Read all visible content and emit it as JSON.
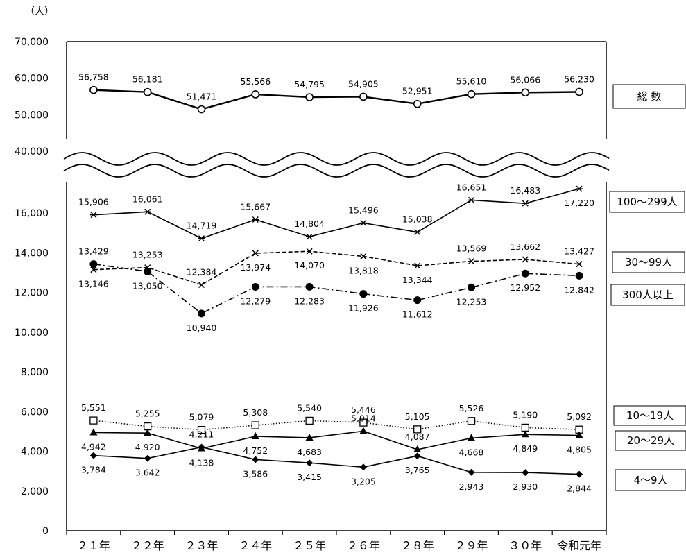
{
  "chart_data": {
    "type": "line",
    "unit_label": "（人）",
    "categories": [
      "２１年",
      "２２年",
      "２３年",
      "２４年",
      "２５年",
      "２６年",
      "２８年",
      "２９年",
      "３０年",
      "令和元年"
    ],
    "upper_axis": {
      "ticks": [
        "40,000",
        "50,000",
        "60,000",
        "70,000"
      ],
      "ylim": [
        40000,
        70000
      ]
    },
    "lower_axis": {
      "ticks": [
        "0",
        "2,000",
        "4,000",
        "6,000",
        "8,000",
        "10,000",
        "12,000",
        "14,000",
        "16,000"
      ],
      "ylim": [
        0,
        17500
      ]
    },
    "axis_break": true,
    "grid": false,
    "series": [
      {
        "name": "総 数",
        "axis": "upper",
        "marker": "circle-open",
        "line": "solid-thick",
        "values": [
          56758,
          56181,
          51471,
          55566,
          54795,
          54905,
          52951,
          55610,
          56066,
          56230
        ],
        "labels": [
          "56,758",
          "56,181",
          "51,471",
          "55,566",
          "54,795",
          "54,905",
          "52,951",
          "55,610",
          "56,066",
          "56,230"
        ]
      },
      {
        "name": "100～299人",
        "axis": "lower",
        "marker": "asterisk",
        "line": "solid",
        "values": [
          15906,
          16061,
          14719,
          15667,
          14804,
          15496,
          15038,
          16651,
          16483,
          17220
        ],
        "labels": [
          "15,906",
          "16,061",
          "14,719",
          "15,667",
          "14,804",
          "15,496",
          "15,038",
          "16,651",
          "16,483",
          "17,220"
        ]
      },
      {
        "name": "30～99人",
        "axis": "lower",
        "marker": "x",
        "line": "dashed",
        "values": [
          13146,
          13253,
          12384,
          13974,
          14070,
          13818,
          13344,
          13569,
          13662,
          13427
        ],
        "labels": [
          "13,146",
          "13,253",
          "12,384",
          "13,974",
          "14,070",
          "13,818",
          "13,344",
          "13,569",
          "13,662",
          "13,427"
        ]
      },
      {
        "name": "300人以上",
        "axis": "lower",
        "marker": "circle-filled",
        "line": "dashdot",
        "values": [
          13429,
          13050,
          10940,
          12279,
          12283,
          11926,
          11612,
          12253,
          12952,
          12842
        ],
        "labels": [
          "13,429",
          "13,050",
          "10,940",
          "12,279",
          "12,283",
          "11,926",
          "11,612",
          "12,253",
          "12,952",
          "12,842"
        ]
      },
      {
        "name": "10～19人",
        "axis": "lower",
        "marker": "square-open",
        "line": "dotted",
        "values": [
          5551,
          5255,
          5079,
          5308,
          5540,
          5446,
          5105,
          5526,
          5190,
          5092
        ],
        "labels": [
          "5,551",
          "5,255",
          "5,079",
          "5,308",
          "5,540",
          "5,446",
          "5,105",
          "5,526",
          "5,190",
          "5,092"
        ]
      },
      {
        "name": "20～29人",
        "axis": "lower",
        "marker": "triangle-filled",
        "line": "solid",
        "values": [
          4942,
          4920,
          4138,
          4752,
          4683,
          5014,
          4087,
          4668,
          4849,
          4805
        ],
        "labels": [
          "4,942",
          "4,920",
          "4,138",
          "4,752",
          "4,683",
          "5,014",
          "4,087",
          "4,668",
          "4,849",
          "4,805"
        ]
      },
      {
        "name": "4～9人",
        "axis": "lower",
        "marker": "diamond-filled",
        "line": "solid",
        "values": [
          3784,
          3642,
          4211,
          3586,
          3415,
          3205,
          3765,
          2943,
          2930,
          2844
        ],
        "labels": [
          "3,784",
          "3,642",
          "4,211",
          "3,586",
          "3,415",
          "3,205",
          "3,765",
          "2,943",
          "2,930",
          "2,844"
        ]
      }
    ]
  }
}
